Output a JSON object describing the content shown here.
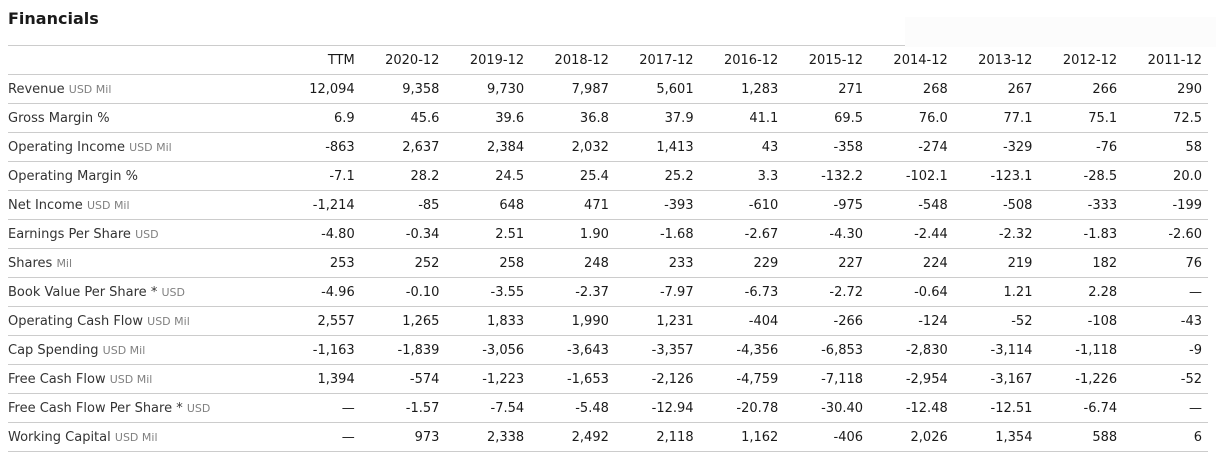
{
  "page": {
    "colors": {
      "background": "#ffffff",
      "heading": "#1a1a1a",
      "value_text": "#1a1a1a",
      "label_text": "#333333",
      "unit_text": "#808080",
      "divider": "#cccccc"
    }
  },
  "chart_data": {
    "type": "table",
    "title": "Financials",
    "columns": [
      "TTM",
      "2020-12",
      "2019-12",
      "2018-12",
      "2017-12",
      "2016-12",
      "2015-12",
      "2014-12",
      "2013-12",
      "2012-12",
      "2011-12"
    ],
    "rows": [
      {
        "label": "Revenue",
        "unit": "USD Mil",
        "values": [
          "12,094",
          "9,358",
          "9,730",
          "7,987",
          "5,601",
          "1,283",
          "271",
          "268",
          "267",
          "266",
          "290"
        ]
      },
      {
        "label": "Gross Margin %",
        "unit": "",
        "values": [
          "6.9",
          "45.6",
          "39.6",
          "36.8",
          "37.9",
          "41.1",
          "69.5",
          "76.0",
          "77.1",
          "75.1",
          "72.5"
        ]
      },
      {
        "label": "Operating Income",
        "unit": "USD Mil",
        "values": [
          "-863",
          "2,637",
          "2,384",
          "2,032",
          "1,413",
          "43",
          "-358",
          "-274",
          "-329",
          "-76",
          "58"
        ]
      },
      {
        "label": "Operating Margin %",
        "unit": "",
        "values": [
          "-7.1",
          "28.2",
          "24.5",
          "25.4",
          "25.2",
          "3.3",
          "-132.2",
          "-102.1",
          "-123.1",
          "-28.5",
          "20.0"
        ]
      },
      {
        "label": "Net Income",
        "unit": "USD Mil",
        "values": [
          "-1,214",
          "-85",
          "648",
          "471",
          "-393",
          "-610",
          "-975",
          "-548",
          "-508",
          "-333",
          "-199"
        ]
      },
      {
        "label": "Earnings Per Share",
        "unit": "USD",
        "values": [
          "-4.80",
          "-0.34",
          "2.51",
          "1.90",
          "-1.68",
          "-2.67",
          "-4.30",
          "-2.44",
          "-2.32",
          "-1.83",
          "-2.60"
        ]
      },
      {
        "label": "Shares",
        "unit": "Mil",
        "values": [
          "253",
          "252",
          "258",
          "248",
          "233",
          "229",
          "227",
          "224",
          "219",
          "182",
          "76"
        ]
      },
      {
        "label": "Book Value Per Share *",
        "unit": "USD",
        "values": [
          "-4.96",
          "-0.10",
          "-3.55",
          "-2.37",
          "-7.97",
          "-6.73",
          "-2.72",
          "-0.64",
          "1.21",
          "2.28",
          "—"
        ]
      },
      {
        "label": "Operating Cash Flow",
        "unit": "USD Mil",
        "values": [
          "2,557",
          "1,265",
          "1,833",
          "1,990",
          "1,231",
          "-404",
          "-266",
          "-124",
          "-52",
          "-108",
          "-43"
        ]
      },
      {
        "label": "Cap Spending",
        "unit": "USD Mil",
        "values": [
          "-1,163",
          "-1,839",
          "-3,056",
          "-3,643",
          "-3,357",
          "-4,356",
          "-6,853",
          "-2,830",
          "-3,114",
          "-1,118",
          "-9"
        ]
      },
      {
        "label": "Free Cash Flow",
        "unit": "USD Mil",
        "values": [
          "1,394",
          "-574",
          "-1,223",
          "-1,653",
          "-2,126",
          "-4,759",
          "-7,118",
          "-2,954",
          "-3,167",
          "-1,226",
          "-52"
        ]
      },
      {
        "label": "Free Cash Flow Per Share *",
        "unit": "USD",
        "values": [
          "—",
          "-1.57",
          "-7.54",
          "-5.48",
          "-12.94",
          "-20.78",
          "-30.40",
          "-12.48",
          "-12.51",
          "-6.74",
          "—"
        ]
      },
      {
        "label": "Working Capital",
        "unit": "USD Mil",
        "values": [
          "—",
          "973",
          "2,338",
          "2,492",
          "2,118",
          "1,162",
          "-406",
          "2,026",
          "1,354",
          "588",
          "6"
        ]
      }
    ]
  }
}
